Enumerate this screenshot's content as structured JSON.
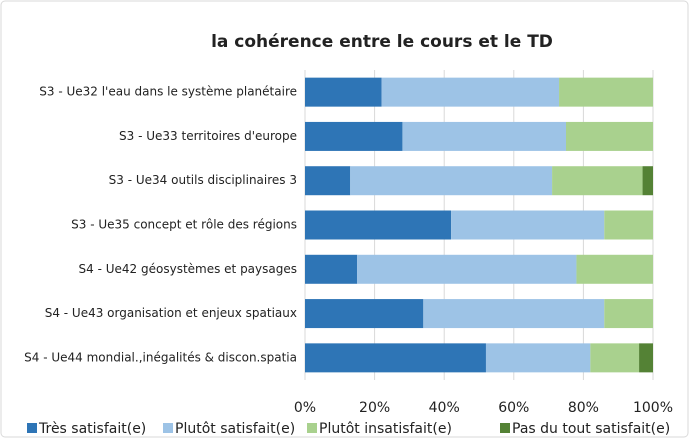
{
  "chart_data": {
    "type": "stacked-bar-horizontal",
    "title": "la cohérence entre le cours et le TD",
    "categories": [
      "S3 - Ue32 l'eau dans le système planétaire",
      "S3 - Ue33 territoires d'europe",
      "S3 - Ue34 outils disciplinaires 3",
      "S3 - Ue35 concept et rôle des régions",
      "S4 - Ue42 géosystèmes et paysages",
      "S4 - Ue43 organisation et enjeux spatiaux",
      "S4 - Ue44 mondial.,inégalités & discon.spatia"
    ],
    "series": [
      {
        "name": "Très satisfait(e)",
        "color": "#2e75b6",
        "values": [
          22,
          28,
          13,
          42,
          15,
          34,
          52
        ]
      },
      {
        "name": "Plutôt satisfait(e)",
        "color": "#9dc3e6",
        "values": [
          51,
          47,
          58,
          44,
          63,
          52,
          30
        ]
      },
      {
        "name": "Plutôt insatisfait(e)",
        "color": "#a9d18e",
        "values": [
          27,
          25,
          26,
          14,
          22,
          14,
          14
        ]
      },
      {
        "name": "Pas du tout satisfait(e)",
        "color": "#548235",
        "values": [
          0,
          0,
          3,
          0,
          0,
          0,
          4
        ]
      }
    ],
    "xlim": [
      0,
      100
    ],
    "xticks": [
      {
        "value": 0,
        "label": "0%"
      },
      {
        "value": 20,
        "label": "20%"
      },
      {
        "value": 40,
        "label": "40%"
      },
      {
        "value": 60,
        "label": "60%"
      },
      {
        "value": 80,
        "label": "80%"
      },
      {
        "value": 100,
        "label": "100%"
      }
    ],
    "grid": true,
    "legend": "bottom"
  }
}
